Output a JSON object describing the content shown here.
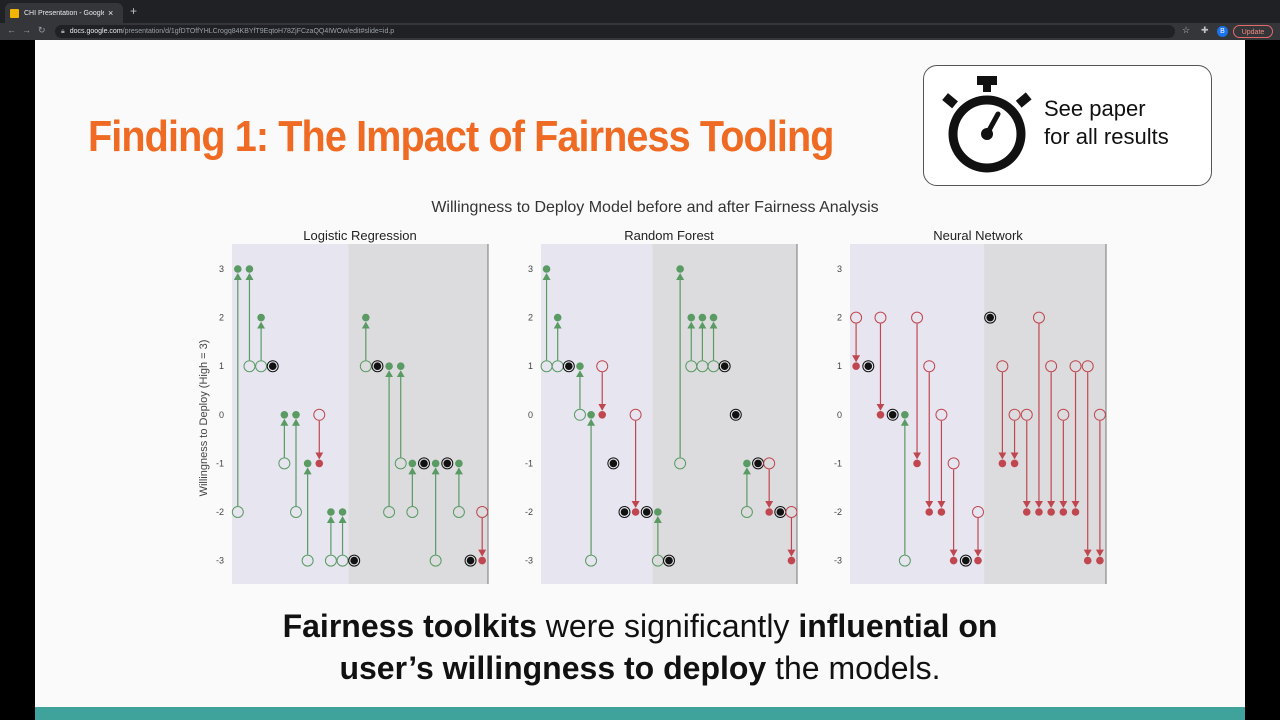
{
  "browser": {
    "tab_title": "CHI Presentation - Google Sli",
    "tab_close": "×",
    "new_tab": "+",
    "url_host": "docs.google.com",
    "url_path": "/presentation/d/1gfDTOffYHLCrogq84KBYfT9EqtoH78ZjFCzaQQ4IWOw/edit#slide=id.p",
    "update_label": "Update",
    "avatar_letter": "B"
  },
  "slide": {
    "title": "Finding 1: The Impact of Fairness Tooling",
    "callout_line1": "See paper",
    "callout_line2": "for all results",
    "caption": {
      "line1_bold1": "Fairness toolkits",
      "line1_plain": " were significantly ",
      "line1_bold2": "influential on",
      "line2_bold": "user’s willingness to deploy",
      "line2_plain": " the models."
    },
    "accent_color": "#ef6a22",
    "footer_color": "#3fa39b"
  },
  "chart_data": {
    "type": "scatter",
    "title": "Willingness to Deploy Model before and after Fairness Analysis",
    "ylabel": "Willingness to Deploy (High = 3)",
    "ylim": [
      -3,
      3
    ],
    "yticks": [
      3,
      2,
      1,
      0,
      -1,
      -2,
      -3
    ],
    "colors": {
      "increase": "#5a9a63",
      "decrease": "#c0474f",
      "unchanged": "#111111"
    },
    "panels": [
      {
        "name": "Logistic Regression",
        "group_split": 10,
        "participants": [
          [
            -2,
            3
          ],
          [
            1,
            3
          ],
          [
            1,
            2
          ],
          [
            1,
            1
          ],
          [
            -1,
            0
          ],
          [
            -2,
            0
          ],
          [
            -3,
            -1
          ],
          [
            0,
            -1
          ],
          [
            -3,
            -2
          ],
          [
            -3,
            -2
          ],
          [
            -3,
            -3
          ],
          [
            1,
            2
          ],
          [
            1,
            1
          ],
          [
            -2,
            1
          ],
          [
            -1,
            1
          ],
          [
            -2,
            -1
          ],
          [
            -1,
            -1
          ],
          [
            -3,
            -1
          ],
          [
            -1,
            -1
          ],
          [
            -2,
            -1
          ],
          [
            -3,
            -3
          ],
          [
            -2,
            -3
          ]
        ]
      },
      {
        "name": "Random Forest",
        "group_split": 10,
        "participants": [
          [
            1,
            3
          ],
          [
            1,
            2
          ],
          [
            1,
            1
          ],
          [
            0,
            1
          ],
          [
            -3,
            0
          ],
          [
            1,
            0
          ],
          [
            -1,
            -1
          ],
          [
            -2,
            -2
          ],
          [
            0,
            -2
          ],
          [
            -2,
            -2
          ],
          [
            -3,
            -2
          ],
          [
            -3,
            -3
          ],
          [
            -1,
            3
          ],
          [
            1,
            2
          ],
          [
            1,
            2
          ],
          [
            1,
            2
          ],
          [
            1,
            1
          ],
          [
            0,
            0
          ],
          [
            -2,
            -1
          ],
          [
            -1,
            -1
          ],
          [
            -1,
            -2
          ],
          [
            -2,
            -2
          ],
          [
            -2,
            -3
          ]
        ]
      },
      {
        "name": "Neural Network",
        "group_split": 11,
        "participants": [
          [
            2,
            1
          ],
          [
            1,
            1
          ],
          [
            2,
            0
          ],
          [
            0,
            0
          ],
          [
            -3,
            0
          ],
          [
            2,
            -1
          ],
          [
            1,
            -2
          ],
          [
            0,
            -2
          ],
          [
            -1,
            -3
          ],
          [
            -3,
            -3
          ],
          [
            -2,
            -3
          ],
          [
            2,
            2
          ],
          [
            1,
            -1
          ],
          [
            0,
            -1
          ],
          [
            0,
            -2
          ],
          [
            2,
            -2
          ],
          [
            1,
            -2
          ],
          [
            0,
            -2
          ],
          [
            1,
            -2
          ],
          [
            1,
            -3
          ],
          [
            0,
            -3
          ]
        ]
      }
    ]
  }
}
